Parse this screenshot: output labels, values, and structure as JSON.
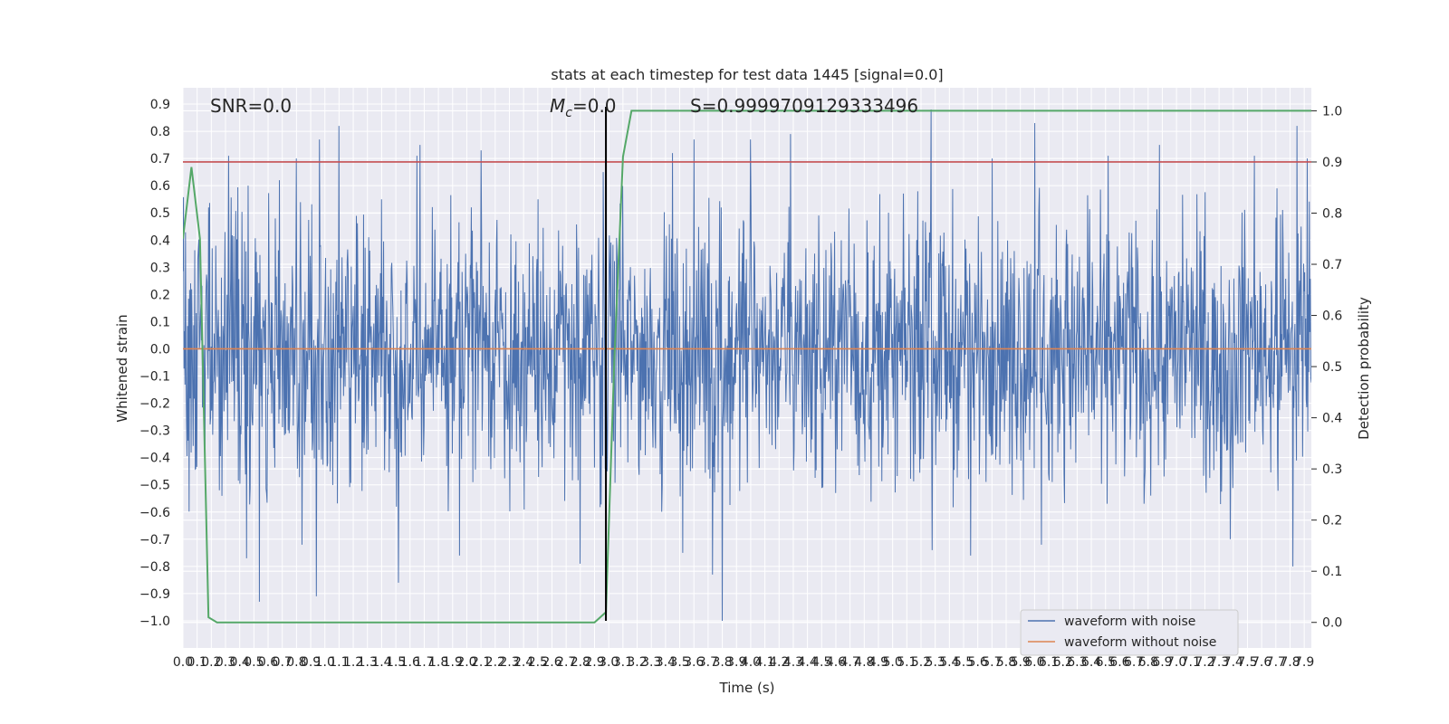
{
  "chart_data": {
    "type": "line",
    "title": "stats at each timestep for test data 1445 [signal=0.0]",
    "xlabel": "Time (s)",
    "ylabel_left": "Whitened strain",
    "ylabel_right": "Detection probability",
    "xlim": [
      0.0,
      7.95
    ],
    "ylim_left": [
      -1.1,
      0.96
    ],
    "ylim_right": [
      -0.05,
      1.045
    ],
    "x_ticks": [
      0.0,
      0.1,
      0.2,
      0.3,
      0.4,
      0.5,
      0.6,
      0.7,
      0.8,
      0.9,
      1.0,
      1.1,
      1.2,
      1.3,
      1.4,
      1.5,
      1.6,
      1.7,
      1.8,
      1.9,
      2.0,
      2.1,
      2.2,
      2.3,
      2.4,
      2.5,
      2.6,
      2.7,
      2.8,
      2.9,
      3.0,
      3.1,
      3.2,
      3.3,
      3.4,
      3.5,
      3.6,
      3.7,
      3.8,
      3.9,
      4.0,
      4.1,
      4.2,
      4.3,
      4.4,
      4.5,
      4.6,
      4.7,
      4.8,
      4.9,
      5.0,
      5.1,
      5.2,
      5.3,
      5.4,
      5.5,
      5.6,
      5.7,
      5.8,
      5.9,
      6.0,
      6.1,
      6.2,
      6.3,
      6.4,
      6.5,
      6.6,
      6.7,
      6.8,
      6.9,
      7.0,
      7.1,
      7.2,
      7.3,
      7.4,
      7.5,
      7.6,
      7.7,
      7.8,
      7.9
    ],
    "y_ticks_left": [
      0.9,
      0.8,
      0.7,
      0.6,
      0.5,
      0.4,
      0.3,
      0.2,
      0.1,
      0.0,
      -0.1,
      -0.2,
      -0.3,
      -0.4,
      -0.5,
      -0.6,
      -0.7,
      -0.8,
      -0.9,
      -1.0
    ],
    "y_ticks_right": [
      1.0,
      0.9,
      0.8,
      0.7,
      0.6,
      0.5,
      0.4,
      0.3,
      0.2,
      0.1,
      0.0
    ],
    "grid": true,
    "series": [
      {
        "name": "waveform with noise",
        "color": "#4c72b0",
        "axis": "left",
        "envelope_peaks": [
          {
            "x": 0.18,
            "y": 0.52
          },
          {
            "x": 0.32,
            "y": 0.71
          },
          {
            "x": 0.46,
            "y": 0.6
          },
          {
            "x": 0.68,
            "y": 0.62
          },
          {
            "x": 0.8,
            "y": 0.7
          },
          {
            "x": 0.96,
            "y": 0.77
          },
          {
            "x": 1.1,
            "y": 0.82
          },
          {
            "x": 1.4,
            "y": 0.55
          },
          {
            "x": 1.65,
            "y": 0.71
          },
          {
            "x": 1.67,
            "y": 0.75
          },
          {
            "x": 2.1,
            "y": 0.73
          },
          {
            "x": 2.5,
            "y": 0.55
          },
          {
            "x": 2.96,
            "y": 0.65
          },
          {
            "x": 3.45,
            "y": 0.72
          },
          {
            "x": 3.6,
            "y": 0.77
          },
          {
            "x": 4.0,
            "y": 0.77
          },
          {
            "x": 4.28,
            "y": 0.79
          },
          {
            "x": 5.27,
            "y": 0.88
          },
          {
            "x": 5.7,
            "y": 0.7
          },
          {
            "x": 6.0,
            "y": 0.83
          },
          {
            "x": 6.52,
            "y": 0.71
          },
          {
            "x": 6.88,
            "y": 0.75
          },
          {
            "x": 7.55,
            "y": 0.71
          },
          {
            "x": 7.85,
            "y": 0.82
          },
          {
            "x": 7.92,
            "y": 0.7
          }
        ],
        "envelope_troughs": [
          {
            "x": 0.45,
            "y": -0.77
          },
          {
            "x": 0.54,
            "y": -0.93
          },
          {
            "x": 0.84,
            "y": -0.72
          },
          {
            "x": 0.94,
            "y": -0.91
          },
          {
            "x": 1.52,
            "y": -0.86
          },
          {
            "x": 1.95,
            "y": -0.76
          },
          {
            "x": 2.8,
            "y": -0.79
          },
          {
            "x": 3.52,
            "y": -0.75
          },
          {
            "x": 3.73,
            "y": -0.83
          },
          {
            "x": 3.8,
            "y": -1.0
          },
          {
            "x": 5.28,
            "y": -0.74
          },
          {
            "x": 5.55,
            "y": -0.76
          },
          {
            "x": 6.05,
            "y": -0.72
          },
          {
            "x": 7.38,
            "y": -0.7
          },
          {
            "x": 7.82,
            "y": -0.8
          }
        ],
        "typical_range": [
          -0.45,
          0.45
        ]
      },
      {
        "name": "waveform without noise",
        "color": "#dd8452",
        "axis": "left",
        "constant": 0.0
      },
      {
        "name": "",
        "color": "#55a868",
        "axis": "right",
        "x": [
          0.0,
          0.06,
          0.12,
          0.18,
          0.24,
          0.3,
          2.9,
          2.98,
          3.04,
          3.1,
          3.16,
          7.95
        ],
        "y": [
          0.75,
          0.89,
          0.75,
          0.01,
          0.0,
          0.0,
          0.0,
          0.02,
          0.52,
          0.91,
          1.0,
          1.0
        ]
      }
    ],
    "threshold_right": {
      "value": 0.9,
      "color": "#c44e52"
    },
    "marker_line": {
      "x": 2.98,
      "color": "#000000"
    },
    "annotations": [
      "SNR=0.0",
      "M",
      "c",
      "=0.0",
      "S=0.9999709129333496"
    ],
    "legend": {
      "position": "lower-right",
      "entries": [
        "waveform with noise",
        "waveform without noise"
      ]
    }
  }
}
